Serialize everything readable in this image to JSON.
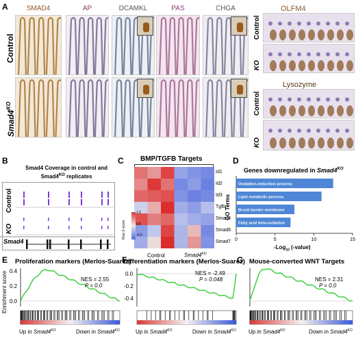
{
  "panelA": {
    "label": "A",
    "stains": [
      "SMAD4",
      "AP",
      "DCAMKL",
      "PAS",
      "CHGA"
    ],
    "stain_colors": [
      "#8a5a2a",
      "#8a3a5a",
      "#555555",
      "#8a3a7a",
      "#555555"
    ],
    "rows": [
      "Control",
      "Smad4KO"
    ],
    "row_main": [
      "Control",
      "Smad4"
    ],
    "row_sup": [
      "",
      "KO"
    ],
    "olfm4": "OLFM4",
    "lysozyme": "Lysozyme",
    "right_rows_1": [
      "Control",
      "KO"
    ],
    "right_rows_2": [
      "Control",
      "KO"
    ]
  },
  "panelB": {
    "label": "B",
    "title_l1": "Smad4 Coverage in control and",
    "title_l2_main": "Smad4",
    "title_l2_sup": "KO",
    "title_l2_rest": " replicates",
    "rows": [
      "Control",
      "KO"
    ],
    "gene": "Smad4"
  },
  "panelC": {
    "label": "C",
    "title": "BMP/TGFB Targets",
    "genes": [
      "Id1",
      "Id2",
      "Id3",
      "Tgfbi",
      "Smad4",
      "Smad6",
      "Smad7"
    ],
    "legend_title": "Row Z-score",
    "legend_ticks": [
      "1.5",
      "0.5",
      "-0.5"
    ],
    "xlabels": [
      "Control",
      "Smad4KO"
    ],
    "x_control": "Control",
    "x_ko_main": "Smad4",
    "x_ko_sup": "KO"
  },
  "panelD": {
    "label": "D",
    "title_main": "Genes downregulated in ",
    "title_gene": "Smad4",
    "title_sup": "KO",
    "ylabel": "GO Terms",
    "xlabel": "-Log10 (-value)",
    "xlabel_pre": "-Log",
    "xlabel_sub": "10",
    "xlabel_post": " (-value)"
  },
  "chart_data": [
    {
      "type": "bar",
      "orientation": "horizontal",
      "categories": [
        "Oxidation-reduction process",
        "Lipid metabolic process",
        "Brush border membrane",
        "Fatty acid beta-oxidation"
      ],
      "values": [
        12.5,
        11.0,
        7.5,
        7.0
      ],
      "xlim": [
        0,
        15
      ],
      "xticks": [
        "0",
        "5",
        "10",
        "15"
      ],
      "color": "#4f86d6"
    },
    {
      "type": "line",
      "title": "Proliferation markers (Merlos-Suarez)",
      "nes": "NES = 2.55",
      "p": "P = 0.0",
      "ylabel": "Enrichment score",
      "yticks": [
        "0.4",
        "0.2",
        "0.0"
      ],
      "x_left": "Up in Smad4KO",
      "x_right": "Down in Smad4KO"
    },
    {
      "type": "line",
      "title": "Differentiation markers (Merlos-Suarez)",
      "nes": "NES = -2.49",
      "p": "P = 0.048",
      "yticks": [
        "0.0",
        "-0.2",
        "-0.4"
      ],
      "x_left": "Up in Smad4KO",
      "x_right": "Down in Smad4KO"
    },
    {
      "type": "line",
      "title": "Mouse-converted WNT Targets",
      "nes": "NES = 2.31",
      "p": "P = 0.0",
      "x_left": "Up in Smad4KO",
      "x_right": "Down in Smad4KO"
    }
  ],
  "panelE": {
    "label": "E"
  },
  "panelF": {
    "label": "F"
  },
  "panelG": {
    "label": "G"
  },
  "gsea_axis": {
    "up_pre": "Up in ",
    "gene": "Smad4",
    "sup": "KO",
    "down_pre": "Down in "
  }
}
